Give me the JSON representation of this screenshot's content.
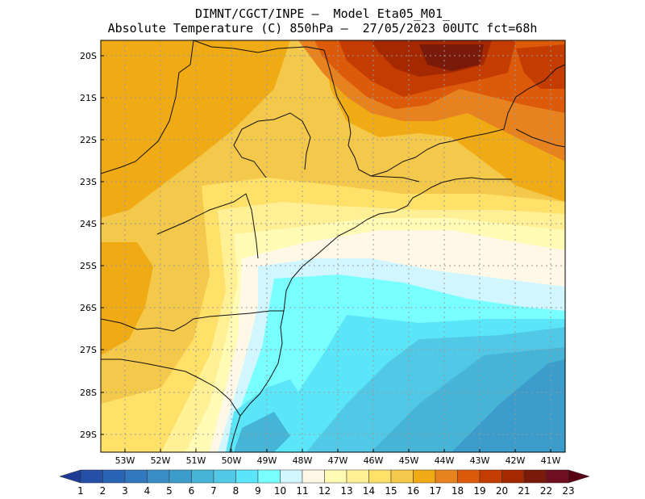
{
  "header": {
    "line1": "DIMNT/CGCT/INPE –  Model Eta05_M01_",
    "line2": "Absolute Temperature (C) 850hPa –  27/05/2023 00UTC fct=68h"
  },
  "axes": {
    "lat_labels": [
      "20S",
      "21S",
      "22S",
      "23S",
      "24S",
      "25S",
      "26S",
      "27S",
      "28S",
      "29S"
    ],
    "lon_labels": [
      "53W",
      "52W",
      "51W",
      "50W",
      "49W",
      "48W",
      "47W",
      "46W",
      "45W",
      "44W",
      "43W",
      "42W",
      "41W"
    ]
  },
  "colorbar": {
    "labels": [
      "1",
      "2",
      "3",
      "4",
      "5",
      "6",
      "7",
      "8",
      "9",
      "10",
      "11",
      "12",
      "13",
      "14",
      "15",
      "16",
      "17",
      "18",
      "19",
      "20",
      "21",
      "22",
      "23"
    ],
    "colors": [
      "#1e3c96",
      "#2450a8",
      "#2a64b4",
      "#3278be",
      "#3a8cc6",
      "#3c9ccc",
      "#46b4d6",
      "#50c8e6",
      "#5ae6f8",
      "#78ffff",
      "#d2f6ff",
      "#fff8e6",
      "#fffab4",
      "#fff096",
      "#ffe068",
      "#f4c84a",
      "#f0aa14",
      "#e8821e",
      "#dc5a0a",
      "#c43c00",
      "#a42800",
      "#7a1a0a",
      "#6e0e1e",
      "#5a0014"
    ]
  }
}
